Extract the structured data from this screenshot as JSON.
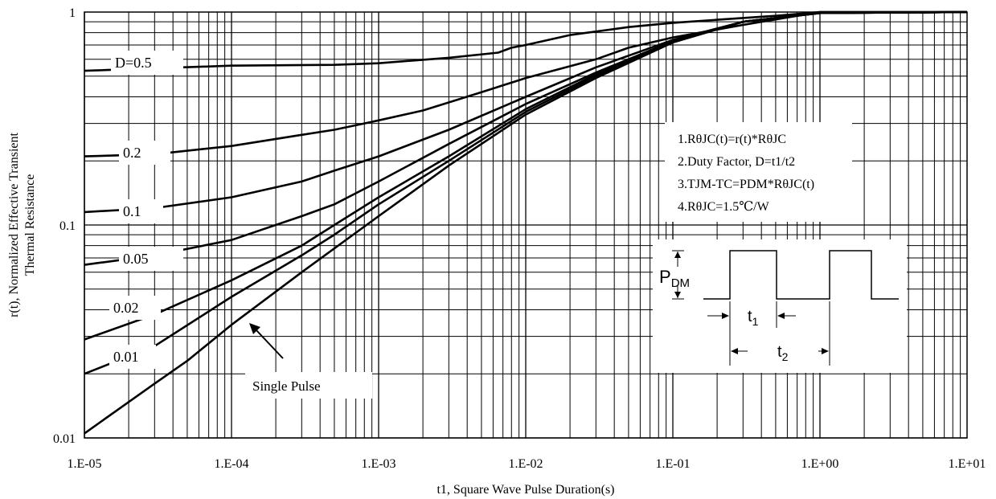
{
  "chart_data": {
    "type": "line",
    "xscale": "log",
    "yscale": "log",
    "xlim": [
      1e-05,
      10
    ],
    "ylim": [
      0.01,
      1
    ],
    "grid": true,
    "xlabel": "t1, Square Wave Pulse Duration(s)",
    "ylabel_line1": "r(t), Normalized Effective Transient",
    "ylabel_line2": "Thermal Resistance",
    "x_ticks": [
      {
        "value": 1e-05,
        "label": "1.E-05"
      },
      {
        "value": 0.0001,
        "label": "1.E-04"
      },
      {
        "value": 0.001,
        "label": "1.E-03"
      },
      {
        "value": 0.01,
        "label": "1.E-02"
      },
      {
        "value": 0.1,
        "label": "1.E-01"
      },
      {
        "value": 1,
        "label": "1.E+00"
      },
      {
        "value": 10,
        "label": "1.E+01"
      }
    ],
    "y_ticks": [
      {
        "value": 0.01,
        "label": "0.01"
      },
      {
        "value": 0.1,
        "label": "0.1"
      },
      {
        "value": 1,
        "label": "1"
      }
    ],
    "series": [
      {
        "name": "D=0.5",
        "x": [
          1e-05,
          0.0001,
          0.0005,
          0.001,
          0.003,
          0.0065,
          0.008,
          0.01,
          0.02,
          0.05,
          0.1,
          0.2,
          0.5,
          1,
          10
        ],
        "y": [
          0.53,
          0.56,
          0.565,
          0.575,
          0.61,
          0.645,
          0.68,
          0.7,
          0.78,
          0.85,
          0.89,
          0.92,
          0.96,
          1.0,
          1.0
        ]
      },
      {
        "name": "0.2",
        "x": [
          1e-05,
          3e-05,
          0.0001,
          0.0003,
          0.0005,
          0.0008,
          0.001,
          0.002,
          0.005,
          0.01,
          0.03,
          0.05,
          0.1,
          0.3,
          0.7,
          1,
          10
        ],
        "y": [
          0.21,
          0.215,
          0.235,
          0.265,
          0.28,
          0.3,
          0.31,
          0.345,
          0.42,
          0.49,
          0.6,
          0.68,
          0.76,
          0.87,
          0.96,
          1.0,
          1.0
        ]
      },
      {
        "name": "0.1",
        "x": [
          1e-05,
          3e-05,
          0.0001,
          0.0003,
          0.0005,
          0.001,
          0.003,
          0.01,
          0.03,
          0.1,
          0.3,
          1,
          10
        ],
        "y": [
          0.115,
          0.12,
          0.135,
          0.16,
          0.18,
          0.21,
          0.28,
          0.4,
          0.55,
          0.74,
          0.9,
          0.99,
          1.0
        ]
      },
      {
        "name": "0.05",
        "x": [
          1e-05,
          3e-05,
          0.0001,
          0.0003,
          0.0005,
          0.001,
          0.003,
          0.01,
          0.03,
          0.1,
          0.3,
          1,
          10
        ],
        "y": [
          0.065,
          0.072,
          0.085,
          0.11,
          0.125,
          0.16,
          0.24,
          0.37,
          0.52,
          0.73,
          0.9,
          0.99,
          1.0
        ]
      },
      {
        "name": "0.02",
        "x": [
          1e-05,
          3e-05,
          0.0001,
          0.0003,
          0.0005,
          0.001,
          0.003,
          0.01,
          0.03,
          0.1,
          0.3,
          1,
          10
        ],
        "y": [
          0.029,
          0.038,
          0.055,
          0.08,
          0.1,
          0.135,
          0.21,
          0.35,
          0.51,
          0.73,
          0.9,
          0.99,
          1.0
        ]
      },
      {
        "name": "0.01",
        "x": [
          1e-05,
          3e-05,
          0.0001,
          0.0003,
          0.0005,
          0.001,
          0.003,
          0.01,
          0.03,
          0.1,
          0.3,
          1,
          10
        ],
        "y": [
          0.02,
          0.027,
          0.046,
          0.072,
          0.09,
          0.125,
          0.2,
          0.34,
          0.5,
          0.72,
          0.9,
          0.99,
          1.0
        ]
      },
      {
        "name": "Single Pulse",
        "x": [
          1e-05,
          3e-05,
          5e-05,
          0.0001,
          0.0003,
          0.001,
          0.003,
          0.01,
          0.03,
          0.1,
          0.3,
          1,
          10
        ],
        "y": [
          0.0105,
          0.018,
          0.023,
          0.034,
          0.06,
          0.11,
          0.19,
          0.33,
          0.49,
          0.72,
          0.9,
          0.99,
          1.0
        ]
      }
    ],
    "notes": [
      "1.RθJC(t)=r(t)*RθJC",
      "2.Duty Factor, D=t1/t2",
      "3.TJM-TC=PDM*RθJC(t)",
      "4.RθJC=1.5℃/W"
    ],
    "single_pulse_label": "Single Pulse",
    "inset": {
      "pdm_label": "P",
      "pdm_sub": "DM",
      "t1_label": "t",
      "t1_sub": "1",
      "t2_label": "t",
      "t2_sub": "2"
    }
  }
}
